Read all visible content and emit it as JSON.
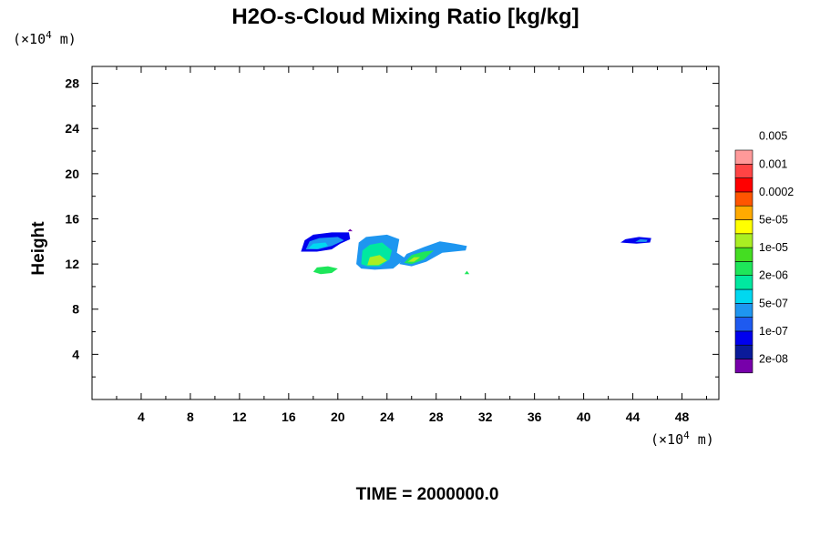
{
  "chart_data": {
    "type": "heatmap",
    "title": "H2O-s-Cloud Mixing Ratio [kg/kg]",
    "ylabel": "Height",
    "x_scale_label": [
      "(×10",
      "4",
      " m)"
    ],
    "y_scale_label": [
      "(×10",
      "4",
      " m)"
    ],
    "xlim": [
      0,
      51
    ],
    "ylim": [
      0,
      29.5
    ],
    "x_ticks": [
      4,
      8,
      12,
      16,
      20,
      24,
      28,
      32,
      36,
      40,
      44,
      48
    ],
    "x_tick_labels": [
      "4",
      "8",
      "12",
      "16",
      "20",
      "24",
      "28",
      "32",
      "36",
      "40",
      "44",
      "48"
    ],
    "y_ticks": [
      4,
      8,
      12,
      16,
      20,
      24,
      28
    ],
    "y_tick_labels": [
      "4",
      "8",
      "12",
      "16",
      "20",
      "24",
      "28"
    ],
    "footer": "TIME = 2000000.0",
    "colorbar": {
      "colors": [
        "#7700aa",
        "#0a1a9a",
        "#0000ee",
        "#1e5af0",
        "#1e96f0",
        "#00d8f0",
        "#00e8a0",
        "#1ee65a",
        "#44dd22",
        "#aaee22",
        "#ffff00",
        "#ffaa00",
        "#ff5500",
        "#ff0000",
        "#ff4444",
        "#ff9999"
      ],
      "labels": [
        "2e-08",
        "1e-07",
        "5e-07",
        "2e-06",
        "1e-05",
        "5e-05",
        "0.0002",
        "0.001",
        "0.005"
      ]
    },
    "cloud_regions": [
      {
        "x": [
          17.0,
          21.0
        ],
        "y": [
          13.0,
          14.8
        ],
        "level": "1e-07 to 5e-07"
      },
      {
        "x": [
          21.5,
          25.0
        ],
        "y": [
          11.5,
          14.5
        ],
        "level": "5e-07 to 5e-05"
      },
      {
        "x": [
          25.0,
          30.5
        ],
        "y": [
          11.8,
          14.0
        ],
        "level": "5e-07 to 5e-05"
      },
      {
        "x": [
          18.0,
          20.0
        ],
        "y": [
          11.0,
          11.8
        ],
        "level": "2e-06 to 1e-05"
      },
      {
        "x": [
          43.0,
          45.5
        ],
        "y": [
          13.8,
          14.5
        ],
        "level": "2e-08 to 5e-07"
      }
    ]
  }
}
